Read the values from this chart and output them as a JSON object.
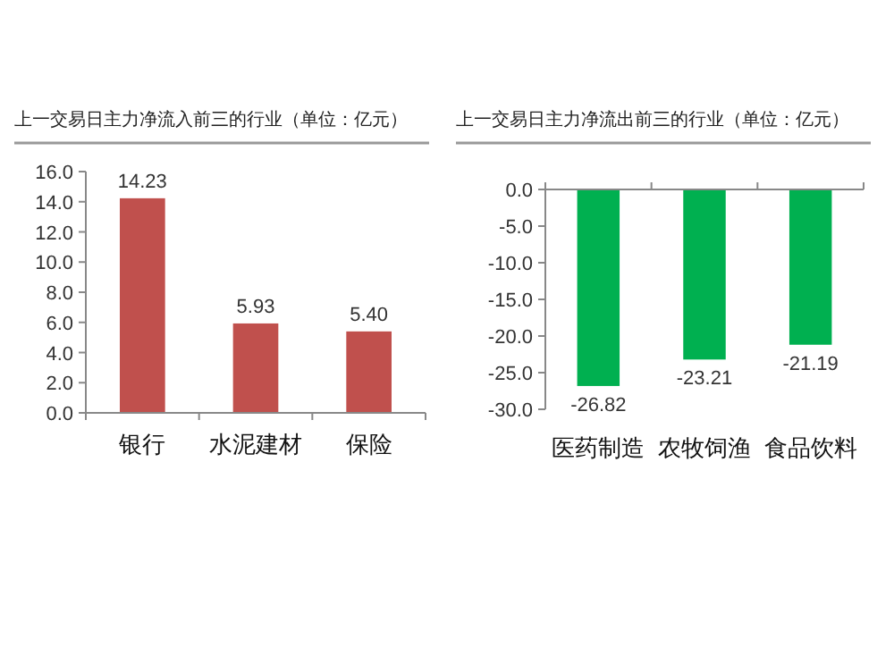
{
  "chart_data": [
    {
      "type": "bar",
      "title": "上一交易日主力净流入前三的行业（单位：亿元）",
      "categories": [
        "银行",
        "水泥建材",
        "保险"
      ],
      "values": [
        14.23,
        5.93,
        5.4
      ],
      "color": "#c0504d",
      "data_labels": true,
      "value_labels": [
        "14.23",
        "5.93",
        "5.40"
      ],
      "ylim": [
        0,
        16
      ],
      "yticks": [
        {
          "value": 0,
          "label": "0.0"
        },
        {
          "value": 2,
          "label": "2.0"
        },
        {
          "value": 4,
          "label": "4.0"
        },
        {
          "value": 6,
          "label": "6.0"
        },
        {
          "value": 8,
          "label": "8.0"
        },
        {
          "value": 10,
          "label": "10.0"
        },
        {
          "value": 12,
          "label": "12.0"
        },
        {
          "value": 14,
          "label": "14.0"
        },
        {
          "value": 16,
          "label": "16.0"
        }
      ],
      "grid": false
    },
    {
      "type": "bar",
      "title": "上一交易日主力净流出前三的行业（单位：亿元）",
      "categories": [
        "医药制造",
        "农牧饲渔",
        "食品饮料"
      ],
      "values": [
        -26.82,
        -23.21,
        -21.19
      ],
      "color": "#00b050",
      "data_labels": true,
      "value_labels": [
        "-26.82",
        "-23.21",
        "-21.19"
      ],
      "ylim": [
        -30,
        0
      ],
      "yticks": [
        {
          "value": -30,
          "label": "-30.0"
        },
        {
          "value": -25,
          "label": "-25.0"
        },
        {
          "value": -20,
          "label": "-20.0"
        },
        {
          "value": -15,
          "label": "-15.0"
        },
        {
          "value": -10,
          "label": "-10.0"
        },
        {
          "value": -5,
          "label": "-5.0"
        },
        {
          "value": 0,
          "label": "0.0"
        }
      ],
      "grid": false
    }
  ]
}
